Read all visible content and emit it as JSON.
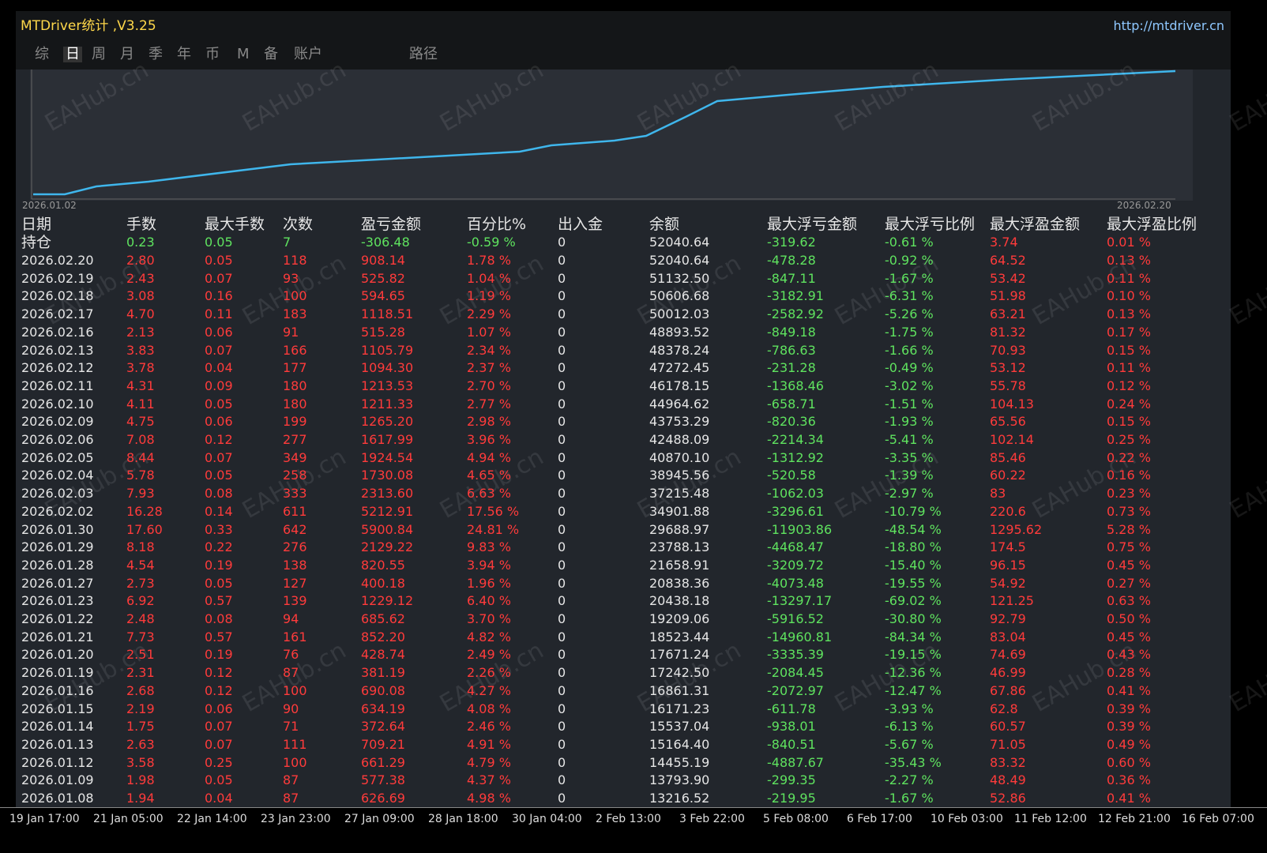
{
  "window": {
    "title": "MTDriver统计 ,V3.25",
    "url": "http://mtdriver.cn",
    "tabs": [
      "综",
      "日",
      "周",
      "月",
      "季",
      "年",
      "币",
      "M",
      "备",
      "账户",
      "路径"
    ],
    "chart_start": "2026.01.02",
    "chart_end": "2026.02.20",
    "watermark": "EAHub.cn"
  },
  "table": {
    "headers": [
      "日期",
      "手数",
      "最大手数",
      "次数",
      "盈亏金额",
      "百分比%",
      "出入金",
      "余额",
      "最大浮亏金额",
      "最大浮亏比例",
      "最大浮盈金额",
      "最大浮盈比例"
    ],
    "holding": [
      "持仓",
      "0.23",
      "0.05",
      "7",
      "-306.48",
      "-0.59 %",
      "0",
      "52040.64",
      "-319.62",
      "-0.61 %",
      "3.74",
      "0.01 %"
    ],
    "rows": [
      [
        "2026.02.20",
        "2.80",
        "0.05",
        "118",
        "908.14",
        "1.78 %",
        "0",
        "52040.64",
        "-478.28",
        "-0.92 %",
        "64.52",
        "0.13 %"
      ],
      [
        "2026.02.19",
        "2.43",
        "0.07",
        "93",
        "525.82",
        "1.04 %",
        "0",
        "51132.50",
        "-847.11",
        "-1.67 %",
        "53.42",
        "0.11 %"
      ],
      [
        "2026.02.18",
        "3.08",
        "0.16",
        "100",
        "594.65",
        "1.19 %",
        "0",
        "50606.68",
        "-3182.91",
        "-6.31 %",
        "51.98",
        "0.10 %"
      ],
      [
        "2026.02.17",
        "4.70",
        "0.11",
        "183",
        "1118.51",
        "2.29 %",
        "0",
        "50012.03",
        "-2582.92",
        "-5.26 %",
        "63.21",
        "0.13 %"
      ],
      [
        "2026.02.16",
        "2.13",
        "0.06",
        "91",
        "515.28",
        "1.07 %",
        "0",
        "48893.52",
        "-849.18",
        "-1.75 %",
        "81.32",
        "0.17 %"
      ],
      [
        "2026.02.13",
        "3.83",
        "0.07",
        "166",
        "1105.79",
        "2.34 %",
        "0",
        "48378.24",
        "-786.63",
        "-1.66 %",
        "70.93",
        "0.15 %"
      ],
      [
        "2026.02.12",
        "3.78",
        "0.04",
        "177",
        "1094.30",
        "2.37 %",
        "0",
        "47272.45",
        "-231.28",
        "-0.49 %",
        "53.12",
        "0.11 %"
      ],
      [
        "2026.02.11",
        "4.31",
        "0.09",
        "180",
        "1213.53",
        "2.70 %",
        "0",
        "46178.15",
        "-1368.46",
        "-3.02 %",
        "55.78",
        "0.12 %"
      ],
      [
        "2026.02.10",
        "4.11",
        "0.05",
        "180",
        "1211.33",
        "2.77 %",
        "0",
        "44964.62",
        "-658.71",
        "-1.51 %",
        "104.13",
        "0.24 %"
      ],
      [
        "2026.02.09",
        "4.75",
        "0.06",
        "199",
        "1265.20",
        "2.98 %",
        "0",
        "43753.29",
        "-820.36",
        "-1.93 %",
        "65.56",
        "0.15 %"
      ],
      [
        "2026.02.06",
        "7.08",
        "0.12",
        "277",
        "1617.99",
        "3.96 %",
        "0",
        "42488.09",
        "-2214.34",
        "-5.41 %",
        "102.14",
        "0.25 %"
      ],
      [
        "2026.02.05",
        "8.44",
        "0.07",
        "349",
        "1924.54",
        "4.94 %",
        "0",
        "40870.10",
        "-1312.92",
        "-3.35 %",
        "85.46",
        "0.22 %"
      ],
      [
        "2026.02.04",
        "5.78",
        "0.05",
        "258",
        "1730.08",
        "4.65 %",
        "0",
        "38945.56",
        "-520.58",
        "-1.39 %",
        "60.22",
        "0.16 %"
      ],
      [
        "2026.02.03",
        "7.93",
        "0.08",
        "333",
        "2313.60",
        "6.63 %",
        "0",
        "37215.48",
        "-1062.03",
        "-2.97 %",
        "83",
        "0.23 %"
      ],
      [
        "2026.02.02",
        "16.28",
        "0.14",
        "611",
        "5212.91",
        "17.56 %",
        "0",
        "34901.88",
        "-3296.61",
        "-10.79 %",
        "220.6",
        "0.73 %"
      ],
      [
        "2026.01.30",
        "17.60",
        "0.33",
        "642",
        "5900.84",
        "24.81 %",
        "0",
        "29688.97",
        "-11903.86",
        "-48.54 %",
        "1295.62",
        "5.28 %"
      ],
      [
        "2026.01.29",
        "8.18",
        "0.22",
        "276",
        "2129.22",
        "9.83 %",
        "0",
        "23788.13",
        "-4468.47",
        "-18.80 %",
        "174.5",
        "0.75 %"
      ],
      [
        "2026.01.28",
        "4.54",
        "0.19",
        "138",
        "820.55",
        "3.94 %",
        "0",
        "21658.91",
        "-3209.72",
        "-15.40 %",
        "96.15",
        "0.45 %"
      ],
      [
        "2026.01.27",
        "2.73",
        "0.05",
        "127",
        "400.18",
        "1.96 %",
        "0",
        "20838.36",
        "-4073.48",
        "-19.55 %",
        "54.92",
        "0.27 %"
      ],
      [
        "2026.01.23",
        "6.92",
        "0.57",
        "139",
        "1229.12",
        "6.40 %",
        "0",
        "20438.18",
        "-13297.17",
        "-69.02 %",
        "121.25",
        "0.63 %"
      ],
      [
        "2026.01.22",
        "2.48",
        "0.08",
        "94",
        "685.62",
        "3.70 %",
        "0",
        "19209.06",
        "-5916.52",
        "-30.80 %",
        "92.79",
        "0.50 %"
      ],
      [
        "2026.01.21",
        "7.73",
        "0.57",
        "161",
        "852.20",
        "4.82 %",
        "0",
        "18523.44",
        "-14960.81",
        "-84.34 %",
        "83.04",
        "0.45 %"
      ],
      [
        "2026.01.20",
        "2.51",
        "0.19",
        "76",
        "428.74",
        "2.49 %",
        "0",
        "17671.24",
        "-3335.39",
        "-19.15 %",
        "74.69",
        "0.43 %"
      ],
      [
        "2026.01.19",
        "2.31",
        "0.12",
        "87",
        "381.19",
        "2.26 %",
        "0",
        "17242.50",
        "-2084.45",
        "-12.36 %",
        "46.99",
        "0.28 %"
      ],
      [
        "2026.01.16",
        "2.68",
        "0.12",
        "100",
        "690.08",
        "4.27 %",
        "0",
        "16861.31",
        "-2072.97",
        "-12.47 %",
        "67.86",
        "0.41 %"
      ],
      [
        "2026.01.15",
        "2.19",
        "0.06",
        "90",
        "634.19",
        "4.08 %",
        "0",
        "16171.23",
        "-611.78",
        "-3.93 %",
        "62.8",
        "0.39 %"
      ],
      [
        "2026.01.14",
        "1.75",
        "0.07",
        "71",
        "372.64",
        "2.46 %",
        "0",
        "15537.04",
        "-938.01",
        "-6.13 %",
        "60.57",
        "0.39 %"
      ],
      [
        "2026.01.13",
        "2.63",
        "0.07",
        "111",
        "709.21",
        "4.91 %",
        "0",
        "15164.40",
        "-840.51",
        "-5.67 %",
        "71.05",
        "0.49 %"
      ],
      [
        "2026.01.12",
        "3.58",
        "0.25",
        "100",
        "661.29",
        "4.79 %",
        "0",
        "14455.19",
        "-4887.67",
        "-35.43 %",
        "83.32",
        "0.60 %"
      ],
      [
        "2026.01.09",
        "1.98",
        "0.05",
        "87",
        "577.38",
        "4.37 %",
        "0",
        "13793.90",
        "-299.35",
        "-2.27 %",
        "48.49",
        "0.36 %"
      ],
      [
        "2026.01.08",
        "1.94",
        "0.04",
        "87",
        "626.69",
        "4.98 %",
        "0",
        "13216.52",
        "-219.95",
        "-1.67 %",
        "52.86",
        "0.41 %"
      ]
    ]
  },
  "time_axis": [
    "19 Jan 17:00",
    "21 Jan 05:00",
    "22 Jan 14:00",
    "23 Jan 23:00",
    "27 Jan 09:00",
    "28 Jan 18:00",
    "30 Jan 04:00",
    "2 Feb 13:00",
    "3 Feb 22:00",
    "5 Feb 08:00",
    "6 Feb 17:00",
    "10 Feb 03:00",
    "11 Feb 12:00",
    "12 Feb 21:00",
    "16 Feb 07:00"
  ]
}
